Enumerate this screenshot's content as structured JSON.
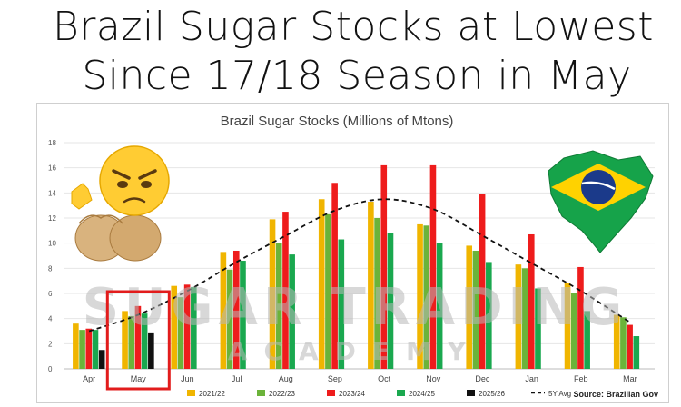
{
  "headline": {
    "line1": "Brazil Sugar Stocks at Lowest",
    "line2": "Since 17/18 Season in May"
  },
  "watermark": {
    "line1": "SUGAR TRADING",
    "line2": "ACADEMY"
  },
  "source": "Source: Brazilian Gov",
  "colors": {
    "s2122": "#f0b500",
    "s2223": "#6bb33a",
    "s2324": "#ee1c1c",
    "s2425": "#1aa84f",
    "s2526": "#111111",
    "avg": "#111111",
    "highlight": "#e21c1c"
  },
  "chart_data": {
    "type": "bar",
    "title": "Brazil Sugar Stocks (Millions of Mtons)",
    "xlabel": "",
    "ylabel": "",
    "ylim": [
      0,
      18
    ],
    "yticks": [
      0,
      2,
      4,
      6,
      8,
      10,
      12,
      14,
      16,
      18
    ],
    "categories": [
      "Apr",
      "May",
      "Jun",
      "Jul",
      "Aug",
      "Sep",
      "Oct",
      "Nov",
      "Dec",
      "Jan",
      "Feb",
      "Mar"
    ],
    "highlight_category": "May",
    "series": [
      {
        "name": "2021/22",
        "color": "#f0b500",
        "values": [
          3.6,
          4.6,
          6.6,
          9.3,
          11.9,
          13.5,
          13.3,
          11.5,
          9.8,
          8.3,
          6.8,
          4.3
        ]
      },
      {
        "name": "2022/23",
        "color": "#6bb33a",
        "values": [
          3.1,
          4.2,
          5.7,
          7.9,
          10.0,
          12.3,
          12.0,
          11.4,
          9.4,
          8.0,
          6.0,
          4.1
        ]
      },
      {
        "name": "2023/24",
        "color": "#ee1c1c",
        "values": [
          3.2,
          5.0,
          6.7,
          9.4,
          12.5,
          14.8,
          16.2,
          16.2,
          13.9,
          10.7,
          8.1,
          3.5
        ]
      },
      {
        "name": "2024/25",
        "color": "#1aa84f",
        "values": [
          3.1,
          4.4,
          6.5,
          8.6,
          9.1,
          10.3,
          10.8,
          10.0,
          8.5,
          6.4,
          4.6,
          2.6
        ]
      },
      {
        "name": "2025/26",
        "color": "#111111",
        "values": [
          1.5,
          2.9,
          null,
          null,
          null,
          null,
          null,
          null,
          null,
          null,
          null,
          null
        ]
      }
    ],
    "avg_line": {
      "name": "5Y Avg",
      "values": [
        3.0,
        4.3,
        6.2,
        8.5,
        10.6,
        12.6,
        13.5,
        12.7,
        10.6,
        8.4,
        6.2,
        3.7
      ]
    },
    "legend": [
      "2021/22",
      "2022/23",
      "2023/24",
      "2024/25",
      "2025/26",
      "5Y Avg"
    ],
    "legend_position": "bottom"
  }
}
